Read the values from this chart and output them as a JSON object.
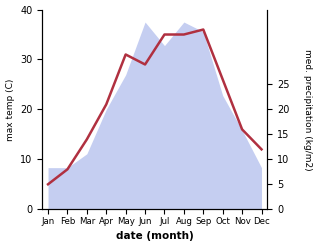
{
  "months": [
    "Jan",
    "Feb",
    "Mar",
    "Apr",
    "May",
    "Jun",
    "Jul",
    "Aug",
    "Sep",
    "Oct",
    "Nov",
    "Dec"
  ],
  "month_indices": [
    0,
    1,
    2,
    3,
    4,
    5,
    6,
    7,
    8,
    9,
    10,
    11
  ],
  "temp_max": [
    5,
    8,
    14,
    21,
    31,
    29,
    35,
    35,
    36,
    26,
    16,
    12
  ],
  "precip_mm": [
    30,
    30,
    40,
    72,
    97,
    135,
    118,
    135,
    128,
    82,
    57,
    30
  ],
  "temp_color": "#b03040",
  "precip_fill_color": "#bfc9f0",
  "temp_ylim": [
    0,
    40
  ],
  "precip_ylim": [
    0,
    144
  ],
  "right_yticks": [
    0,
    5,
    10,
    15,
    20,
    25
  ],
  "right_ytick_vals": [
    0,
    18,
    36,
    54,
    72,
    90
  ],
  "xlabel": "date (month)",
  "ylabel_left": "max temp (C)",
  "ylabel_right": "med. precipitation (kg/m2)",
  "bg_color": "#ffffff",
  "left_yticks": [
    0,
    10,
    20,
    30,
    40
  ]
}
